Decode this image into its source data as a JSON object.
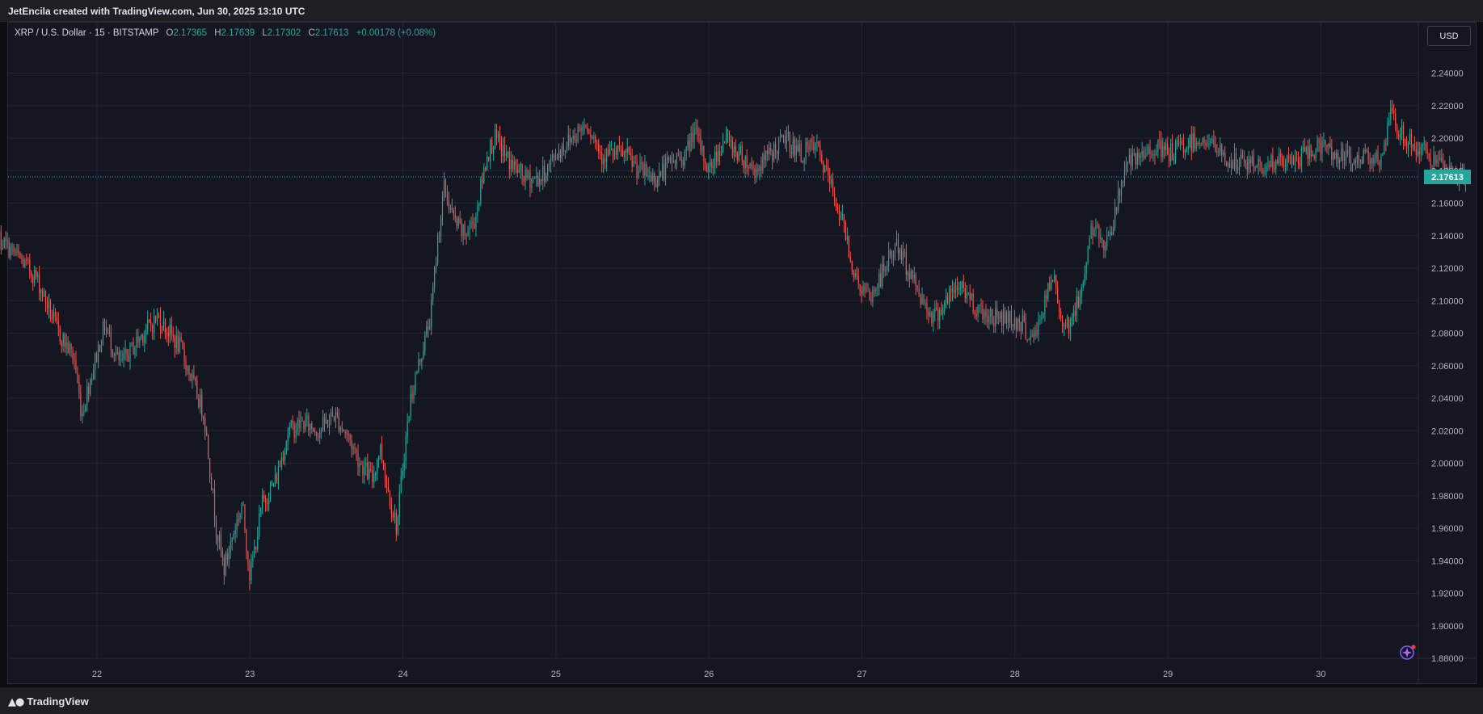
{
  "header": {
    "credit": "JetEncila created with TradingView.com, Jun 30, 2025 13:10 UTC"
  },
  "legend": {
    "symbol": "XRP / U.S. Dollar · 15 · BITSTAMP",
    "open_label": "O",
    "open": "2.17365",
    "high_label": "H",
    "high": "2.17639",
    "low_label": "L",
    "low": "2.17302",
    "close_label": "C",
    "close": "2.17613",
    "change": "+0.00178 (+0.08%)"
  },
  "currency_button": "USD",
  "footer": {
    "brand": "TradingView",
    "logo_icon": "tradingview-logo-icon"
  },
  "assistant_icon": "sparkle-assistant-icon",
  "colors": {
    "up": "#26a69a",
    "down": "#ef5350",
    "background": "#141722",
    "grid": "#232632"
  },
  "chart_data": {
    "type": "candlestick",
    "interval": "15",
    "last_price": 2.17613,
    "last_price_label": "2.17613",
    "ylim": [
      1.875,
      2.248
    ],
    "y_ticks": [
      "1.88000",
      "1.90000",
      "1.92000",
      "1.94000",
      "1.96000",
      "1.98000",
      "2.00000",
      "2.02000",
      "2.04000",
      "2.06000",
      "2.08000",
      "2.10000",
      "2.12000",
      "2.14000",
      "2.16000",
      "2.18000",
      "2.20000",
      "2.22000",
      "2.24000"
    ],
    "x_ticks": [
      "22",
      "23",
      "24",
      "25",
      "26",
      "27",
      "28",
      "29",
      "30"
    ],
    "grid": true,
    "price_path": [
      [
        21.3,
        2.143
      ],
      [
        21.45,
        2.13
      ],
      [
        21.6,
        2.115
      ],
      [
        21.75,
        2.08
      ],
      [
        21.85,
        2.065
      ],
      [
        21.9,
        2.03
      ],
      [
        21.95,
        2.05
      ],
      [
        22.05,
        2.085
      ],
      [
        22.15,
        2.06
      ],
      [
        22.3,
        2.08
      ],
      [
        22.4,
        2.09
      ],
      [
        22.55,
        2.07
      ],
      [
        22.7,
        2.03
      ],
      [
        22.78,
        1.96
      ],
      [
        22.83,
        1.935
      ],
      [
        22.9,
        1.96
      ],
      [
        22.95,
        1.975
      ],
      [
        23.0,
        1.93
      ],
      [
        23.08,
        1.975
      ],
      [
        23.17,
        1.99
      ],
      [
        23.25,
        2.02
      ],
      [
        23.35,
        2.025
      ],
      [
        23.45,
        2.02
      ],
      [
        23.55,
        2.03
      ],
      [
        23.65,
        2.015
      ],
      [
        23.72,
        2.0
      ],
      [
        23.8,
        1.99
      ],
      [
        23.85,
        2.01
      ],
      [
        23.9,
        1.985
      ],
      [
        23.96,
        1.96
      ],
      [
        24.0,
        2.0
      ],
      [
        24.05,
        2.04
      ],
      [
        24.1,
        2.06
      ],
      [
        24.18,
        2.09
      ],
      [
        24.23,
        2.14
      ],
      [
        24.27,
        2.17
      ],
      [
        24.33,
        2.15
      ],
      [
        24.4,
        2.14
      ],
      [
        24.47,
        2.15
      ],
      [
        24.55,
        2.19
      ],
      [
        24.6,
        2.2
      ],
      [
        24.7,
        2.185
      ],
      [
        24.8,
        2.175
      ],
      [
        24.9,
        2.175
      ],
      [
        25.0,
        2.19
      ],
      [
        25.1,
        2.2
      ],
      [
        25.2,
        2.21
      ],
      [
        25.3,
        2.19
      ],
      [
        25.45,
        2.19
      ],
      [
        25.55,
        2.18
      ],
      [
        25.65,
        2.175
      ],
      [
        25.75,
        2.185
      ],
      [
        25.85,
        2.19
      ],
      [
        25.9,
        2.205
      ],
      [
        26.0,
        2.18
      ],
      [
        26.1,
        2.2
      ],
      [
        26.2,
        2.19
      ],
      [
        26.3,
        2.18
      ],
      [
        26.4,
        2.19
      ],
      [
        26.5,
        2.2
      ],
      [
        26.6,
        2.19
      ],
      [
        26.7,
        2.195
      ],
      [
        26.8,
        2.17
      ],
      [
        26.9,
        2.14
      ],
      [
        26.95,
        2.115
      ],
      [
        27.05,
        2.1
      ],
      [
        27.15,
        2.12
      ],
      [
        27.22,
        2.135
      ],
      [
        27.3,
        2.12
      ],
      [
        27.4,
        2.1
      ],
      [
        27.47,
        2.09
      ],
      [
        27.55,
        2.1
      ],
      [
        27.65,
        2.11
      ],
      [
        27.75,
        2.095
      ],
      [
        27.85,
        2.09
      ],
      [
        27.95,
        2.09
      ],
      [
        28.05,
        2.085
      ],
      [
        28.12,
        2.075
      ],
      [
        28.2,
        2.1
      ],
      [
        28.25,
        2.115
      ],
      [
        28.3,
        2.09
      ],
      [
        28.35,
        2.085
      ],
      [
        28.42,
        2.1
      ],
      [
        28.5,
        2.145
      ],
      [
        28.58,
        2.135
      ],
      [
        28.65,
        2.15
      ],
      [
        28.72,
        2.185
      ],
      [
        28.8,
        2.185
      ],
      [
        28.9,
        2.195
      ],
      [
        29.0,
        2.19
      ],
      [
        29.1,
        2.195
      ],
      [
        29.2,
        2.2
      ],
      [
        29.3,
        2.195
      ],
      [
        29.4,
        2.185
      ],
      [
        29.5,
        2.185
      ],
      [
        29.6,
        2.183
      ],
      [
        29.7,
        2.185
      ],
      [
        29.8,
        2.185
      ],
      [
        29.9,
        2.19
      ],
      [
        30.0,
        2.195
      ],
      [
        30.1,
        2.19
      ],
      [
        30.2,
        2.185
      ],
      [
        30.3,
        2.19
      ],
      [
        30.35,
        2.19
      ],
      [
        30.4,
        2.183
      ],
      [
        30.45,
        2.215
      ],
      [
        30.5,
        2.205
      ],
      [
        30.6,
        2.195
      ],
      [
        30.7,
        2.19
      ],
      [
        30.8,
        2.18
      ],
      [
        30.9,
        2.178
      ],
      [
        30.95,
        2.176
      ]
    ]
  }
}
